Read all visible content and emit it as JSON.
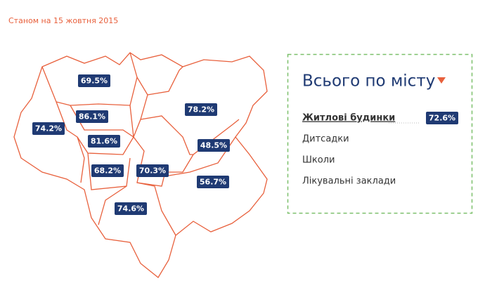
{
  "header": {
    "date": "Станом на 15 жовтня 2015"
  },
  "map": {
    "districts": [
      {
        "label": "69.5%"
      },
      {
        "label": "86.1%"
      },
      {
        "label": "74.2%"
      },
      {
        "label": "81.6%"
      },
      {
        "label": "78.2%"
      },
      {
        "label": "48.5%"
      },
      {
        "label": "68.2%"
      },
      {
        "label": "70.3%"
      },
      {
        "label": "56.7%"
      },
      {
        "label": "74.6%"
      }
    ]
  },
  "panel": {
    "title": "Всього по місту",
    "items": [
      {
        "label": "Житлові будинки",
        "value": "72.6%"
      },
      {
        "label": "Дитсадки"
      },
      {
        "label": "Школи"
      },
      {
        "label": "Лікувальні заклади"
      }
    ]
  }
}
